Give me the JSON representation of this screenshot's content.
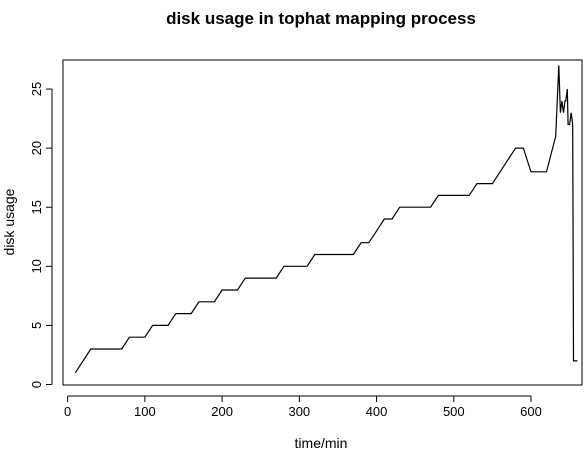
{
  "chart_data": {
    "type": "line",
    "title": "disk usage in tophat mapping process",
    "xlabel": "time/min",
    "ylabel": "disk usage",
    "xlim": [
      -6,
      666
    ],
    "ylim": [
      0,
      27.5
    ],
    "xticks": [
      0,
      100,
      200,
      300,
      400,
      500,
      600
    ],
    "yticks": [
      0,
      5,
      10,
      15,
      20,
      25
    ],
    "grid": false,
    "legend": "none",
    "line_color": "#000000",
    "series": [
      {
        "x": [
          10,
          30,
          70,
          80,
          100,
          110,
          130,
          140,
          160,
          170,
          190,
          200,
          220,
          230,
          240,
          270,
          280,
          300,
          310,
          320,
          340,
          370,
          380,
          390,
          400,
          410,
          420,
          430,
          470,
          480,
          520,
          530,
          550,
          580,
          590,
          600,
          620,
          632,
          636,
          638,
          640,
          642,
          644,
          645,
          647,
          648,
          650,
          652,
          654,
          655,
          658,
          660
        ],
        "y": [
          1,
          3,
          3,
          4,
          4,
          5,
          5,
          6,
          6,
          7,
          7,
          8,
          8,
          9,
          9,
          9,
          10,
          10,
          10,
          11,
          11,
          11,
          12,
          12,
          13,
          14,
          14,
          15,
          15,
          16,
          16,
          17,
          17,
          20,
          20,
          18,
          18,
          21,
          27,
          23,
          24,
          23,
          24,
          24,
          25,
          22,
          22,
          23,
          22,
          2,
          2,
          2
        ]
      }
    ]
  }
}
